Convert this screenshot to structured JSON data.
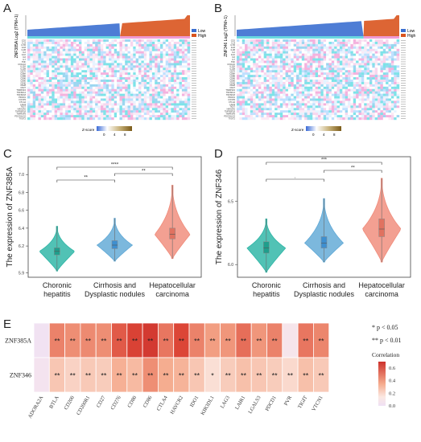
{
  "panels": {
    "a": "A",
    "b": "B",
    "c": "C",
    "d": "D",
    "e": "E"
  },
  "heatmapA": {
    "ylabel": "ZNF385A Log2 (TPM+1)",
    "legend": [
      "Low",
      "High"
    ],
    "zscore_label": "Z-score",
    "zscore_ticks": [
      "0",
      "4",
      "8"
    ],
    "rows": [
      "CD2",
      "IL-8",
      "IL7R",
      "IL18",
      "IL1B",
      "IL2",
      "IL10",
      "IL6",
      "IL7",
      "TNF",
      "CXCL10",
      "IL12A",
      "IL12B",
      "CD70",
      "CD8A",
      "CD8B",
      "CD86",
      "CD80",
      "CD40",
      "CD28",
      "CD27",
      "TNFRSF4",
      "TNFSF14",
      "TNFSF18",
      "PDCD1",
      "FOXP3",
      "CTLA4",
      "LAG3",
      "TIGIT",
      "HAVCR2",
      "TNFRSF18",
      "TNFRSF9",
      "PDCD1LG2",
      "TIGIT2"
    ],
    "colors": {
      "low": "#3b6fd0",
      "high": "#d9541e",
      "low_band": "#69d8e0",
      "high_band": "#ef9ad3"
    }
  },
  "heatmapB": {
    "ylabel": "ZNF346 Log2 (TPM+1)",
    "legend": [
      "Low",
      "High"
    ],
    "zscore_label": "Z-score",
    "zscore_ticks": [
      "0",
      "4",
      "8"
    ]
  },
  "chart_data": [
    {
      "type": "violin",
      "panel": "C",
      "ylabel": "The expression of ZNF385A",
      "categories": [
        "Choronic hepatitis",
        "Cirrhosis and Dysplastic nodules",
        "Hepatocellular carcinoma"
      ],
      "medians": [
        6.14,
        6.21,
        6.33
      ],
      "q1": [
        6.1,
        6.17,
        6.28
      ],
      "q3": [
        6.18,
        6.26,
        6.4
      ],
      "min": [
        5.92,
        6.03,
        6.06
      ],
      "max": [
        6.42,
        6.51,
        6.88
      ],
      "ylim": [
        5.85,
        7.2
      ],
      "yticks": [
        "5.9",
        "6.2",
        "6.4",
        "6.6",
        "6.8",
        "7.0"
      ],
      "brackets": [
        {
          "from": 0,
          "to": 1,
          "label": "**"
        },
        {
          "from": 0,
          "to": 2,
          "label": "****"
        },
        {
          "from": 1,
          "to": 2,
          "label": "**"
        }
      ],
      "colors": [
        "#2bb5a5",
        "#5fa8d6",
        "#f08b7a"
      ]
    },
    {
      "type": "violin",
      "panel": "D",
      "ylabel": "The expression of ZNF346",
      "categories": [
        "Choronic hepatitis",
        "Cirrhosis and Dysplastic nodules",
        "Hepatocellular carcinoma"
      ],
      "medians": [
        6.13,
        6.17,
        6.28
      ],
      "q1": [
        6.09,
        6.13,
        6.22
      ],
      "q3": [
        6.18,
        6.22,
        6.36
      ],
      "min": [
        5.94,
        6.02,
        6.02
      ],
      "max": [
        6.36,
        6.52,
        6.68
      ],
      "ylim": [
        5.9,
        6.85
      ],
      "yticks": [
        "6.0",
        "6.5"
      ],
      "brackets": [
        {
          "from": 0,
          "to": 1,
          "label": "."
        },
        {
          "from": 0,
          "to": 2,
          "label": "***"
        },
        {
          "from": 1,
          "to": 2,
          "label": "**"
        }
      ],
      "colors": [
        "#2bb5a5",
        "#5fa8d6",
        "#f08b7a"
      ]
    },
    {
      "type": "heatmap",
      "panel": "E",
      "rows": [
        "ZNF385A",
        "ZNF346"
      ],
      "columns": [
        "ADORA2A",
        "BTLA",
        "CD200",
        "CD200R1",
        "CD27",
        "CD276",
        "CD80",
        "CD86",
        "CTLA4",
        "HAVCR2",
        "IDO1",
        "KIR3DL1",
        "LAG3",
        "LAIR1",
        "LGALS3",
        "PDCD1",
        "PVR",
        "TIGIT",
        "VTCN1"
      ],
      "values": [
        [
          0.02,
          0.45,
          0.42,
          0.43,
          0.42,
          0.55,
          0.62,
          0.66,
          0.48,
          0.6,
          0.45,
          0.38,
          0.4,
          0.5,
          0.4,
          0.45,
          0.08,
          0.48,
          0.44
        ],
        [
          0.05,
          0.26,
          0.22,
          0.25,
          0.24,
          0.33,
          0.3,
          0.42,
          0.34,
          0.32,
          0.26,
          0.18,
          0.24,
          0.28,
          0.26,
          0.24,
          0.2,
          0.28,
          0.25
        ]
      ],
      "stars": [
        [
          "",
          "**",
          "**",
          "**",
          "**",
          "**",
          "**",
          "**",
          "**",
          "**",
          "**",
          "**",
          "**",
          "**",
          "**",
          "**",
          "",
          "**",
          "**"
        ],
        [
          "",
          "**",
          "**",
          "**",
          "**",
          "**",
          "**",
          "**",
          "**",
          "**",
          "**",
          "*",
          "**",
          "**",
          "**",
          "**",
          "**",
          "**",
          "**"
        ]
      ],
      "legend_title": "Correlation",
      "legend_ticks": [
        "0.0",
        "0.2",
        "0.4",
        "0.6"
      ],
      "sig_notes": [
        "* p < 0.05",
        "** p < 0.01"
      ]
    }
  ]
}
